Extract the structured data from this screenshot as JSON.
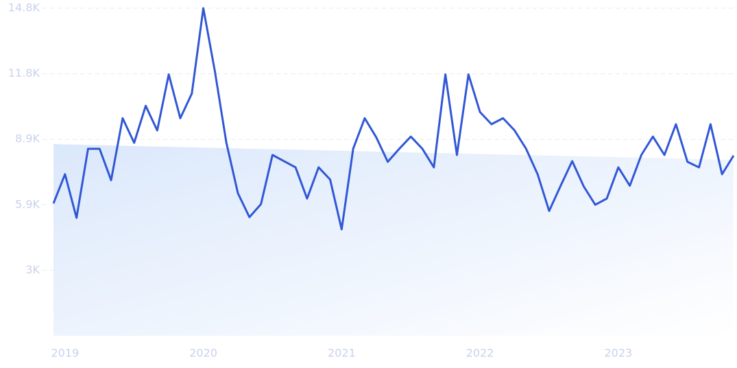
{
  "chart_data": {
    "type": "line",
    "categories": [
      null,
      "2019",
      null,
      null,
      null,
      null,
      null,
      null,
      null,
      null,
      null,
      null,
      null,
      "2020",
      null,
      null,
      null,
      null,
      null,
      null,
      null,
      null,
      null,
      null,
      null,
      "2021",
      null,
      null,
      null,
      null,
      null,
      null,
      null,
      null,
      null,
      null,
      null,
      "2022",
      null,
      null,
      null,
      null,
      null,
      null,
      null,
      null,
      null,
      null,
      null,
      "2023",
      null,
      null,
      null,
      null,
      null,
      null,
      null,
      null,
      null,
      null
    ],
    "values": [
      5980,
      7300,
      5330,
      8450,
      8450,
      7030,
      9830,
      8720,
      10390,
      9280,
      11810,
      9830,
      10940,
      14800,
      11960,
      8720,
      6440,
      5360,
      5950,
      8170,
      7890,
      7610,
      6200,
      7610,
      7060,
      4810,
      8450,
      9830,
      8970,
      7860,
      8450,
      9000,
      8450,
      7610,
      11810,
      8170,
      11810,
      10110,
      9560,
      9830,
      9280,
      8450,
      7300,
      5640,
      6780,
      7890,
      6750,
      5920,
      6200,
      7610,
      6780,
      8170,
      9000,
      8170,
      9560,
      7860,
      7610,
      9560,
      7300,
      8140
    ],
    "color": "#3157d5",
    "trend": [
      8660,
      7950
    ],
    "ylim": [
      0,
      14800
    ],
    "yticks": [
      {
        "value": 2960,
        "label": "3K"
      },
      {
        "value": 5920,
        "label": "5.9K"
      },
      {
        "value": 8880,
        "label": "8.9K"
      },
      {
        "value": 11840,
        "label": "11.8K"
      },
      {
        "value": 14800,
        "label": "14.8K"
      }
    ],
    "grid": true
  }
}
